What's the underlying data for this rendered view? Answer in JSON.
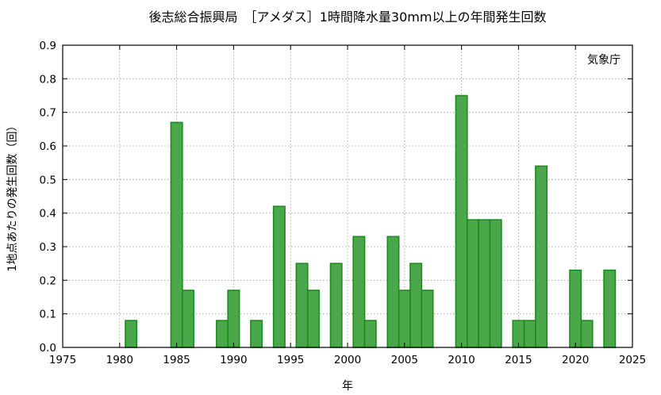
{
  "chart_data": {
    "type": "bar",
    "title": "後志総合振興局　［アメダス］1時間降水量30mm以上の年間発生回数",
    "xlabel": "年",
    "ylabel": "1地点あたりの発生回数（回）",
    "source_label": "気象庁",
    "xlim": [
      1975,
      2025
    ],
    "ylim": [
      0,
      0.9
    ],
    "x_ticks": [
      1975,
      1980,
      1985,
      1990,
      1995,
      2000,
      2005,
      2010,
      2015,
      2020,
      2025
    ],
    "y_ticks": [
      0.0,
      0.1,
      0.2,
      0.3,
      0.4,
      0.5,
      0.6,
      0.7,
      0.8,
      0.9
    ],
    "grid": true,
    "bar_color": "#4aa84a",
    "bar_edge_color": "#1e8a1e",
    "x": [
      1976,
      1977,
      1978,
      1979,
      1980,
      1981,
      1982,
      1983,
      1984,
      1985,
      1986,
      1987,
      1988,
      1989,
      1990,
      1991,
      1992,
      1993,
      1994,
      1995,
      1996,
      1997,
      1998,
      1999,
      2000,
      2001,
      2002,
      2003,
      2004,
      2005,
      2006,
      2007,
      2008,
      2009,
      2010,
      2011,
      2012,
      2013,
      2014,
      2015,
      2016,
      2017,
      2018,
      2019,
      2020,
      2021,
      2022,
      2023,
      2024
    ],
    "values": [
      0,
      0,
      0,
      0,
      0,
      0.08,
      0,
      0,
      0,
      0.67,
      0.17,
      0,
      0,
      0.08,
      0.17,
      0,
      0.08,
      0,
      0.42,
      0,
      0.25,
      0.17,
      0,
      0.25,
      0,
      0.33,
      0.08,
      0,
      0.33,
      0.17,
      0.25,
      0.17,
      0,
      0,
      0.75,
      0.38,
      0.38,
      0.38,
      0,
      0.08,
      0.08,
      0.54,
      0,
      0,
      0.23,
      0.08,
      0,
      0.23,
      0
    ]
  }
}
